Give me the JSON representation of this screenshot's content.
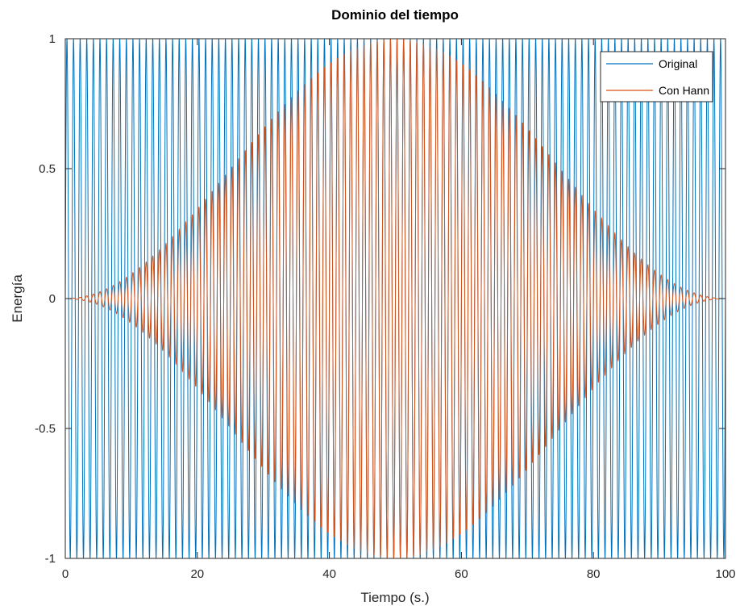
{
  "chart_data": {
    "type": "line",
    "title": "Dominio del tiempo",
    "xlabel": "Tiempo (s.)",
    "ylabel": "Energía",
    "xlim": [
      0,
      100
    ],
    "ylim": [
      -1,
      1
    ],
    "xticks": [
      0,
      20,
      40,
      60,
      80,
      100
    ],
    "xtick_labels": [
      "0",
      "20",
      "40",
      "60",
      "80",
      "100"
    ],
    "yticks": [
      -1,
      -0.5,
      0,
      0.5,
      1
    ],
    "ytick_labels": [
      "-1",
      "-0.5",
      "0",
      "0.5",
      "1"
    ],
    "grid": false,
    "legend_position": "top-right",
    "series": [
      {
        "name": "Original",
        "color": "#0072BD",
        "signal": "sine",
        "frequency_hz": 1,
        "amplitude": 1
      },
      {
        "name": "Con Hann",
        "color": "#D95319",
        "signal": "sine with Hann window",
        "frequency_hz": 1,
        "amplitude": 1,
        "window": "hann"
      }
    ]
  }
}
